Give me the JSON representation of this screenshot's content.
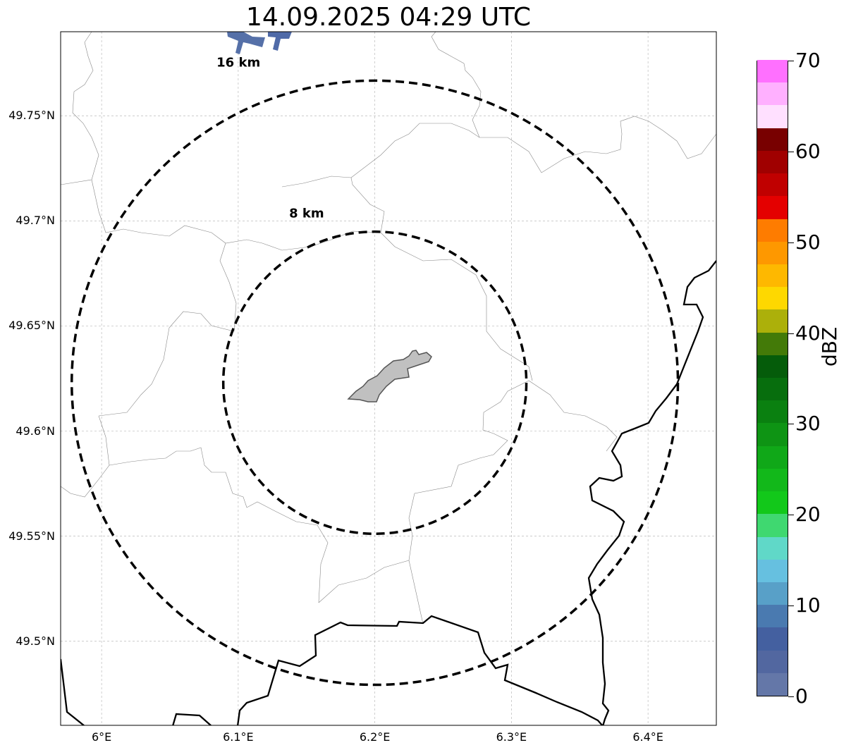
{
  "title": "14.09.2025 04:29 UTC",
  "map": {
    "lon_range": [
      5.97,
      6.45
    ],
    "lat_range": [
      49.46,
      49.79
    ],
    "center": {
      "lon": 6.2,
      "lat": 49.623
    },
    "range_rings": [
      {
        "radius_km": 16,
        "label": "16 km"
      },
      {
        "radius_km": 8,
        "label": "8 km"
      }
    ],
    "lat_ticks": [
      {
        "value": 49.75,
        "label": "49.75°N"
      },
      {
        "value": 49.7,
        "label": "49.7°N"
      },
      {
        "value": 49.65,
        "label": "49.65°N"
      },
      {
        "value": 49.6,
        "label": "49.6°N"
      },
      {
        "value": 49.55,
        "label": "49.55°N"
      },
      {
        "value": 49.5,
        "label": "49.5°N"
      }
    ],
    "lon_ticks": [
      {
        "value": 6.0,
        "label": "6°E"
      },
      {
        "value": 6.1,
        "label": "6.1°E"
      },
      {
        "value": 6.2,
        "label": "6.2°E"
      },
      {
        "value": 6.3,
        "label": "6.3°E"
      },
      {
        "value": 6.4,
        "label": "6.4°E"
      }
    ],
    "gridlines": true
  },
  "colorbar": {
    "label": "dBZ",
    "min": 0,
    "max": 70,
    "step": 2.5,
    "tick_labels": [
      "0",
      "10",
      "20",
      "30",
      "40",
      "50",
      "60",
      "70"
    ],
    "colors": [
      "#6477a8",
      "#5267a0",
      "#4460a0",
      "#4a7ab0",
      "#58a0c8",
      "#66c0e0",
      "#60d8c8",
      "#3fd870",
      "#12c81a",
      "#12b81a",
      "#10a818",
      "#0e9414",
      "#0a8010",
      "#076e0d",
      "#055c0a",
      "#437a08",
      "#acb00a",
      "#fed800",
      "#feb800",
      "#fe9800",
      "#fe7c00",
      "#e40000",
      "#c00000",
      "#a00000",
      "#780000",
      "#ffe0ff",
      "#ffb0ff",
      "#ff70ff",
      "#ee36ee"
    ]
  }
}
